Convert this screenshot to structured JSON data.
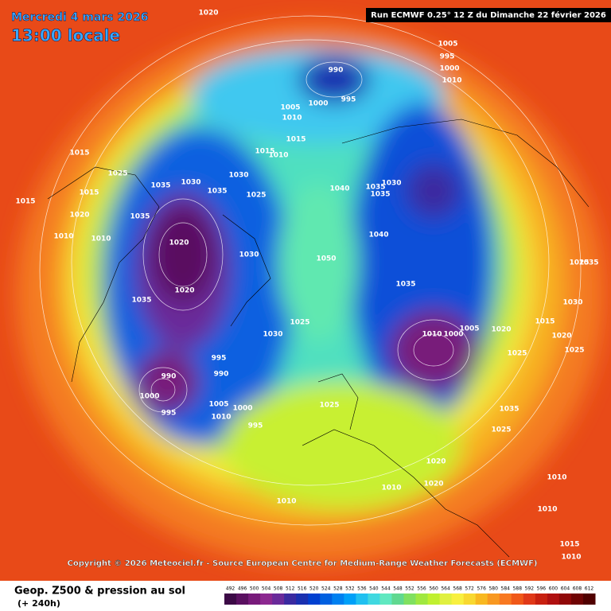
{
  "header": {
    "date": "Mercredi 4 mars 2026",
    "time": "13:00 locale",
    "run": "Run ECMWF 0.25° 12 Z du Dimanche 22 février 2026"
  },
  "copyright": "Copyright © 2026 Meteociel.fr - Source European Centre for Medium-Range Weather Forecasts (ECMWF)",
  "footer": {
    "title": "Geop. Z500 & pression au sol",
    "lead": "(+ 240h)"
  },
  "color_scale": {
    "labels": [
      "492",
      "496",
      "500",
      "504",
      "508",
      "512",
      "516",
      "520",
      "524",
      "528",
      "532",
      "536",
      "540",
      "544",
      "548",
      "552",
      "556",
      "560",
      "564",
      "568",
      "572",
      "576",
      "580",
      "584",
      "588",
      "592",
      "596",
      "600",
      "604",
      "608",
      "612"
    ],
    "colors": [
      "#3c0a46",
      "#5a1060",
      "#781a7a",
      "#8c2890",
      "#6a2a9a",
      "#3a2aa0",
      "#1a30b0",
      "#0040d0",
      "#0060e0",
      "#0080f0",
      "#00a0f8",
      "#20c0f0",
      "#40d8e0",
      "#60e8c0",
      "#60d890",
      "#80e060",
      "#a0e840",
      "#c0f030",
      "#e0f040",
      "#f8f040",
      "#f8d830",
      "#f8b820",
      "#f89820",
      "#f87820",
      "#f05818",
      "#e03818",
      "#c82010",
      "#b01010",
      "#900808",
      "#700404",
      "#500000"
    ]
  },
  "isobar_labels": [
    "1020",
    "1005",
    "995",
    "1000",
    "1010",
    "990",
    "995",
    "1000",
    "1005",
    "1010",
    "1015",
    "1010",
    "1015",
    "1025",
    "1035",
    "1030",
    "1035",
    "1030",
    "1025",
    "1040",
    "1035",
    "1030",
    "1035",
    "1015",
    "1015",
    "1020",
    "1010",
    "1010",
    "1015",
    "1020",
    "1035",
    "1030",
    "1040",
    "1050",
    "1035",
    "1010",
    "1000",
    "1005",
    "1020",
    "1025",
    "1035",
    "1020",
    "1030",
    "1025",
    "990",
    "1000",
    "995",
    "990",
    "995",
    "1005",
    "1010",
    "1000",
    "995",
    "1025",
    "1035",
    "1025",
    "1020",
    "1020",
    "1010",
    "1010",
    "1015",
    "1020",
    "1025",
    "1030",
    "1035",
    "1010",
    "1010",
    "1010",
    "1015",
    "1025"
  ]
}
